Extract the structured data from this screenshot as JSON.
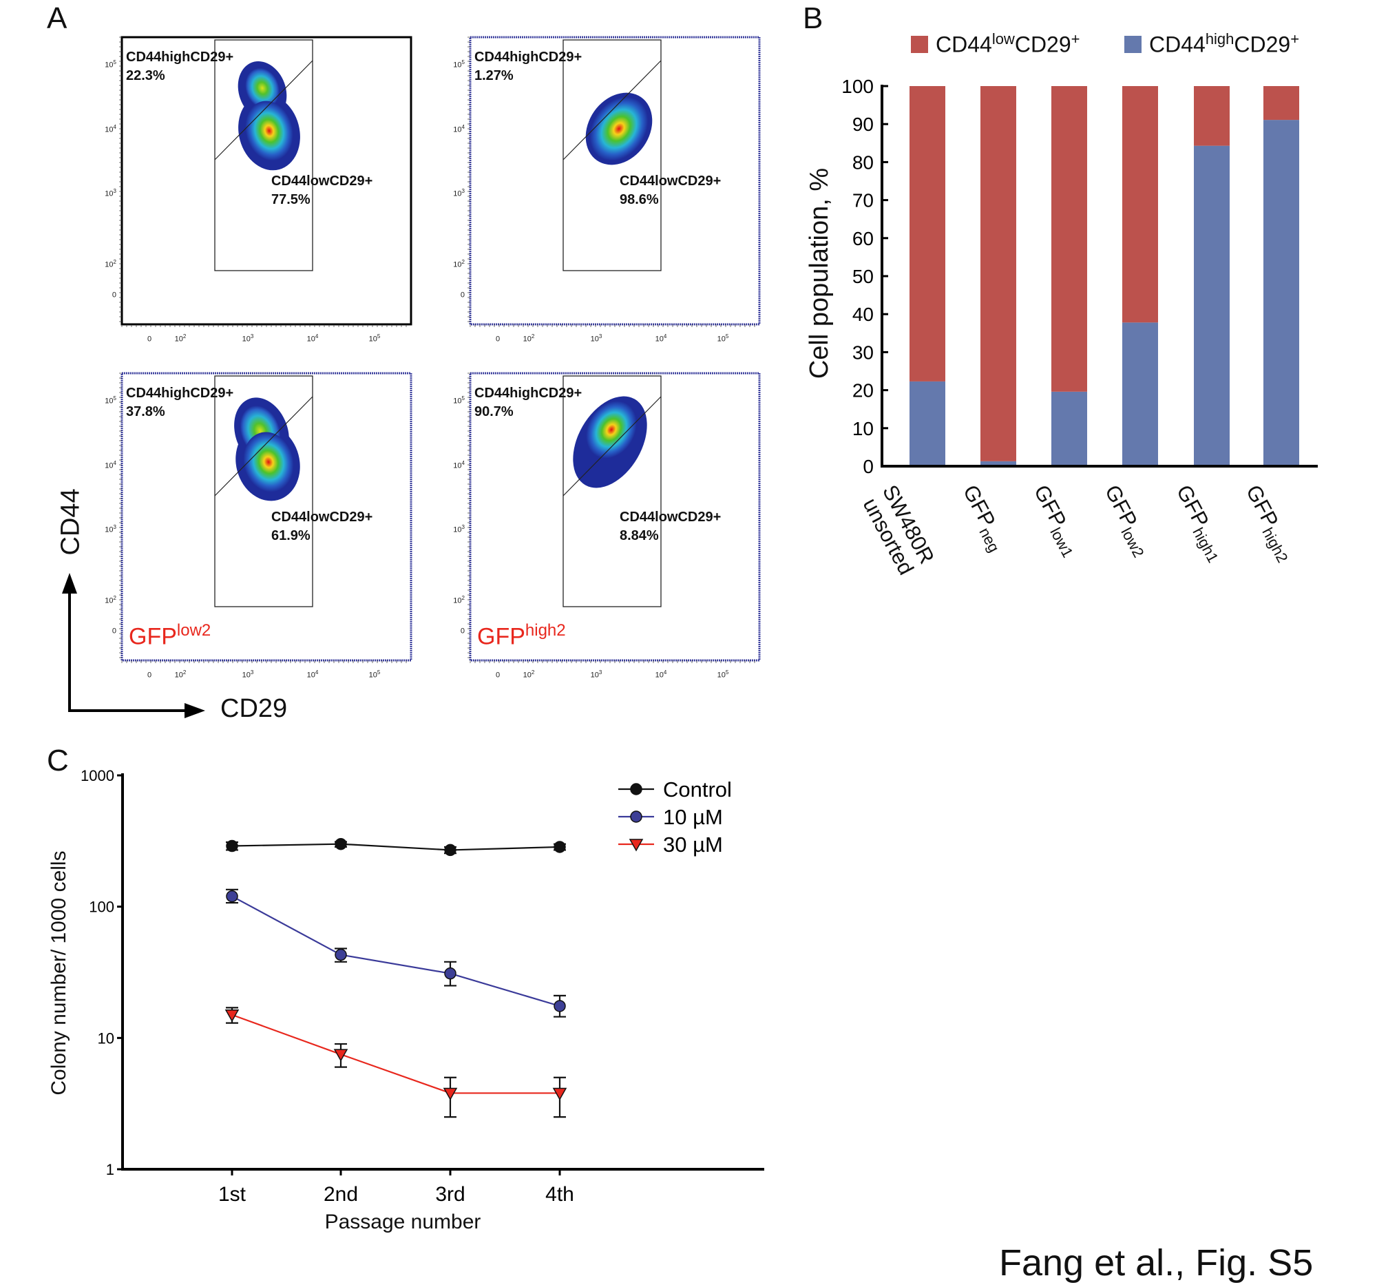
{
  "panel_a": {
    "letter": "A",
    "x_axis_label": "CD29",
    "y_axis_label": "CD44",
    "y_ticks": [
      {
        "b": "10",
        "e": "5"
      },
      {
        "b": "10",
        "e": "4"
      },
      {
        "b": "10",
        "e": "3"
      },
      {
        "b": "10",
        "e": "2"
      },
      {
        "b": "0",
        "e": ""
      }
    ],
    "x_ticks": [
      {
        "b": "0",
        "e": ""
      },
      {
        "b": "10",
        "e": "2"
      },
      {
        "b": "10",
        "e": "3"
      },
      {
        "b": "10",
        "e": "4"
      },
      {
        "b": "10",
        "e": "5"
      }
    ],
    "plots": [
      {
        "high_label": "CD44highCD29+",
        "high_pct": "22.3%",
        "low_label": "CD44lowCD29+",
        "low_pct": "77.5%",
        "sample": "",
        "sample_sup": "",
        "border": "#000000"
      },
      {
        "high_label": "CD44highCD29+",
        "high_pct": "1.27%",
        "low_label": "CD44lowCD29+",
        "low_pct": "98.6%",
        "sample": "",
        "sample_sup": "",
        "border": "#3b3f9e"
      },
      {
        "high_label": "CD44highCD29+",
        "high_pct": "37.8%",
        "low_label": "CD44lowCD29+",
        "low_pct": "61.9%",
        "sample": "GFP",
        "sample_sup": "low2",
        "border": "#3b3f9e"
      },
      {
        "high_label": "CD44highCD29+",
        "high_pct": "90.7%",
        "low_label": "CD44lowCD29+",
        "low_pct": "8.84%",
        "sample": "GFP",
        "sample_sup": "high2",
        "border": "#3b3f9e"
      }
    ]
  },
  "chart_data": [
    {
      "type": "bar",
      "stacked": true,
      "letter": "B",
      "categories": [
        {
          "main": "SW480R",
          "line2": "unsorted",
          "sub": ""
        },
        {
          "main": "GFP",
          "line2": "",
          "sub": "neg"
        },
        {
          "main": "GFP",
          "line2": "",
          "sub": "low1"
        },
        {
          "main": "GFP",
          "line2": "",
          "sub": "low2"
        },
        {
          "main": "GFP",
          "line2": "",
          "sub": "high1"
        },
        {
          "main": "GFP",
          "line2": "",
          "sub": "high2"
        }
      ],
      "series": [
        {
          "name": "CD44highCD29+",
          "legend": {
            "a": "CD44",
            "sup1": "high",
            "b": "CD29",
            "sup2": "+"
          },
          "color": "#6479ad",
          "values": [
            22.3,
            1.3,
            19.6,
            37.8,
            84.3,
            91.1
          ]
        },
        {
          "name": "CD44lowCD29+",
          "legend": {
            "a": "CD44",
            "sup1": "low",
            "b": "CD29",
            "sup2": "+"
          },
          "color": "#bc524d",
          "values": [
            77.7,
            98.7,
            80.4,
            62.2,
            15.7,
            8.9
          ]
        }
      ],
      "legend_order": [
        1,
        0
      ],
      "ylabel": "Cell population, %",
      "ylim": [
        0,
        100
      ],
      "yticks": [
        0,
        10,
        20,
        30,
        40,
        50,
        60,
        70,
        80,
        90,
        100
      ],
      "legend_position": "top",
      "grid": false
    },
    {
      "type": "line",
      "letter": "C",
      "y_scale": "log",
      "ylim": [
        1,
        1000
      ],
      "yticks": [
        1,
        10,
        100,
        1000
      ],
      "categories": [
        "1st",
        "2nd",
        "3rd",
        "4th"
      ],
      "xlabel": "Passage number",
      "ylabel": "Colony number/ 1000 cells",
      "legend_position": "top-right",
      "grid": false,
      "series": [
        {
          "name": "Control",
          "color": "#111111",
          "marker": "circle",
          "marker_fill": "#111111",
          "values": [
            290,
            300,
            270,
            285
          ],
          "err_low": [
            270,
            285,
            255,
            270
          ],
          "err_high": [
            310,
            312,
            285,
            300
          ]
        },
        {
          "name": "10 µM",
          "color": "#3a3a99",
          "marker": "circle",
          "marker_fill": "#3d3f96",
          "values": [
            120,
            43,
            31,
            17.5
          ],
          "err_low": [
            107,
            38,
            25,
            14.5
          ],
          "err_high": [
            135,
            48,
            38,
            21
          ]
        },
        {
          "name": "30 µM",
          "color": "#e8271d",
          "marker": "triangle-down",
          "marker_fill": "#e8271d",
          "values": [
            15,
            7.5,
            3.8,
            3.8
          ],
          "err_low": [
            13,
            6,
            2.5,
            2.5
          ],
          "err_high": [
            17,
            9,
            5,
            5
          ]
        }
      ]
    }
  ],
  "credit": "Fang et al., Fig. S5"
}
